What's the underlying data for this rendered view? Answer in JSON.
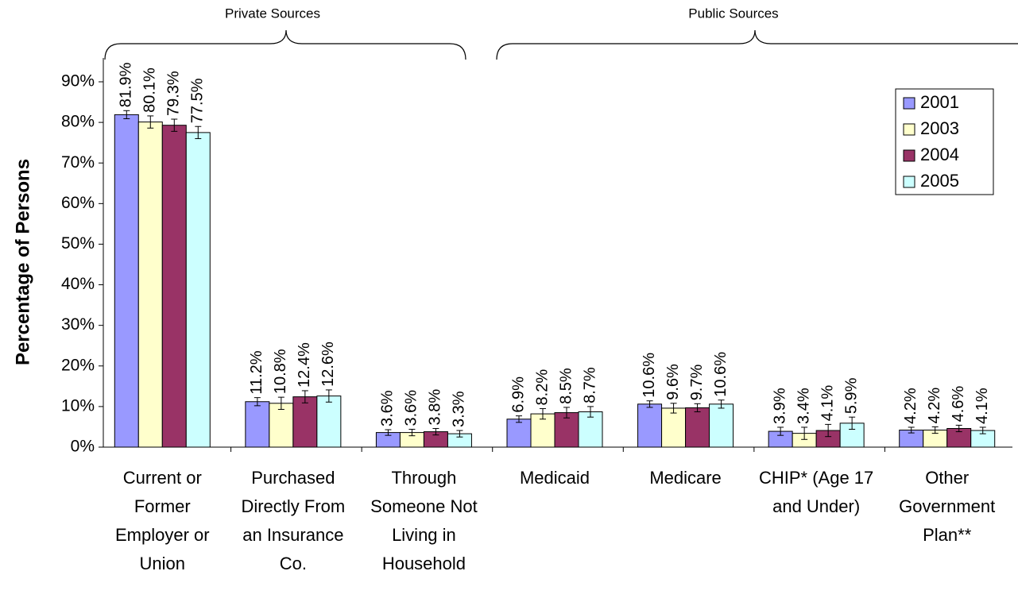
{
  "chart_data": {
    "type": "bar",
    "y_label": "Percentage of Persons",
    "annotations": [
      "Private Sources",
      "Public Sources"
    ],
    "categories": [
      "Current or Former Employer or Union",
      "Purchased Directly From an Insurance Co.",
      "Through Someone Not Living in Household",
      "Medicaid",
      "Medicare",
      "CHIP* (Age 17 and Under)",
      "Other Government Plan**"
    ],
    "series": [
      {
        "name": "2001",
        "color": "#9999ff",
        "values": [
          81.9,
          11.2,
          3.6,
          6.9,
          10.6,
          3.9,
          4.2
        ],
        "value_labels": [
          "81.9%",
          "11.2%",
          "3.6%",
          "6.9%",
          "10.6%",
          "3.9%",
          "4.2%"
        ],
        "errors": [
          1.0,
          1.0,
          0.7,
          0.8,
          0.8,
          1.0,
          0.7
        ]
      },
      {
        "name": "2003",
        "color": "#ffffcc",
        "values": [
          80.1,
          10.8,
          3.6,
          8.2,
          9.6,
          3.4,
          4.2
        ],
        "value_labels": [
          "80.1%",
          "10.8%",
          "3.6%",
          "8.2%",
          "9.6%",
          "3.4%",
          "4.2%"
        ],
        "errors": [
          1.5,
          1.5,
          0.8,
          1.3,
          1.2,
          1.5,
          0.8
        ]
      },
      {
        "name": "2004",
        "color": "#993366",
        "values": [
          79.3,
          12.4,
          3.8,
          8.5,
          9.7,
          4.1,
          4.6
        ],
        "value_labels": [
          "79.3%",
          "12.4%",
          "3.8%",
          "8.5%",
          "9.7%",
          "4.1%",
          "4.6%"
        ],
        "errors": [
          1.5,
          1.5,
          0.8,
          1.3,
          1.0,
          1.5,
          0.8
        ]
      },
      {
        "name": "2005",
        "color": "#ccffff",
        "values": [
          77.5,
          12.6,
          3.3,
          8.7,
          10.6,
          5.9,
          4.1
        ],
        "value_labels": [
          "77.5%",
          "12.6%",
          "3.3%",
          "8.7%",
          "10.6%",
          "5.9%",
          "4.1%"
        ],
        "errors": [
          1.5,
          1.5,
          0.8,
          1.3,
          1.0,
          1.5,
          0.8
        ]
      }
    ],
    "ylim": [
      0,
      90
    ],
    "yticks": [
      {
        "value": 0,
        "label": "0%"
      },
      {
        "value": 10,
        "label": "10%"
      },
      {
        "value": 20,
        "label": "20%"
      },
      {
        "value": 30,
        "label": "30%"
      },
      {
        "value": 40,
        "label": "40%"
      },
      {
        "value": 50,
        "label": "50%"
      },
      {
        "value": 60,
        "label": "60%"
      },
      {
        "value": 70,
        "label": "70%"
      },
      {
        "value": 80,
        "label": "80%"
      },
      {
        "value": 90,
        "label": "90%"
      }
    ],
    "legend": "top-right"
  }
}
